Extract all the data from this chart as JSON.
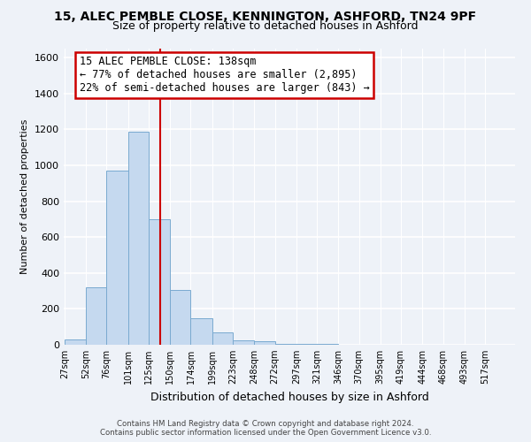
{
  "title": "15, ALEC PEMBLE CLOSE, KENNINGTON, ASHFORD, TN24 9PF",
  "subtitle": "Size of property relative to detached houses in Ashford",
  "xlabel": "Distribution of detached houses by size in Ashford",
  "ylabel": "Number of detached properties",
  "bar_color": "#c5d9ef",
  "bar_edge_color": "#7aaad0",
  "vline_x": 138,
  "vline_color": "#cc0000",
  "annotation_text": "15 ALEC PEMBLE CLOSE: 138sqm\n← 77% of detached houses are smaller (2,895)\n22% of semi-detached houses are larger (843) →",
  "annotation_fontsize": 8.5,
  "footer_text": "Contains HM Land Registry data © Crown copyright and database right 2024.\nContains public sector information licensed under the Open Government Licence v3.0.",
  "ylim": [
    0,
    1650
  ],
  "yticks": [
    0,
    200,
    400,
    600,
    800,
    1000,
    1200,
    1400,
    1600
  ],
  "bin_edges": [
    27,
    52,
    76,
    101,
    125,
    150,
    174,
    199,
    223,
    248,
    272,
    297,
    321,
    346,
    370,
    395,
    419,
    444,
    468,
    493,
    517,
    542
  ],
  "bin_heights": [
    30,
    320,
    970,
    1185,
    700,
    305,
    150,
    70,
    25,
    20,
    5,
    5,
    3,
    2,
    2,
    2,
    2,
    2,
    2,
    2,
    2
  ],
  "tick_labels": [
    "27sqm",
    "52sqm",
    "76sqm",
    "101sqm",
    "125sqm",
    "150sqm",
    "174sqm",
    "199sqm",
    "223sqm",
    "248sqm",
    "272sqm",
    "297sqm",
    "321sqm",
    "346sqm",
    "370sqm",
    "395sqm",
    "419sqm",
    "444sqm",
    "468sqm",
    "493sqm",
    "517sqm"
  ],
  "background_color": "#eef2f8",
  "grid_color": "#ffffff",
  "title_fontsize": 10,
  "subtitle_fontsize": 9
}
